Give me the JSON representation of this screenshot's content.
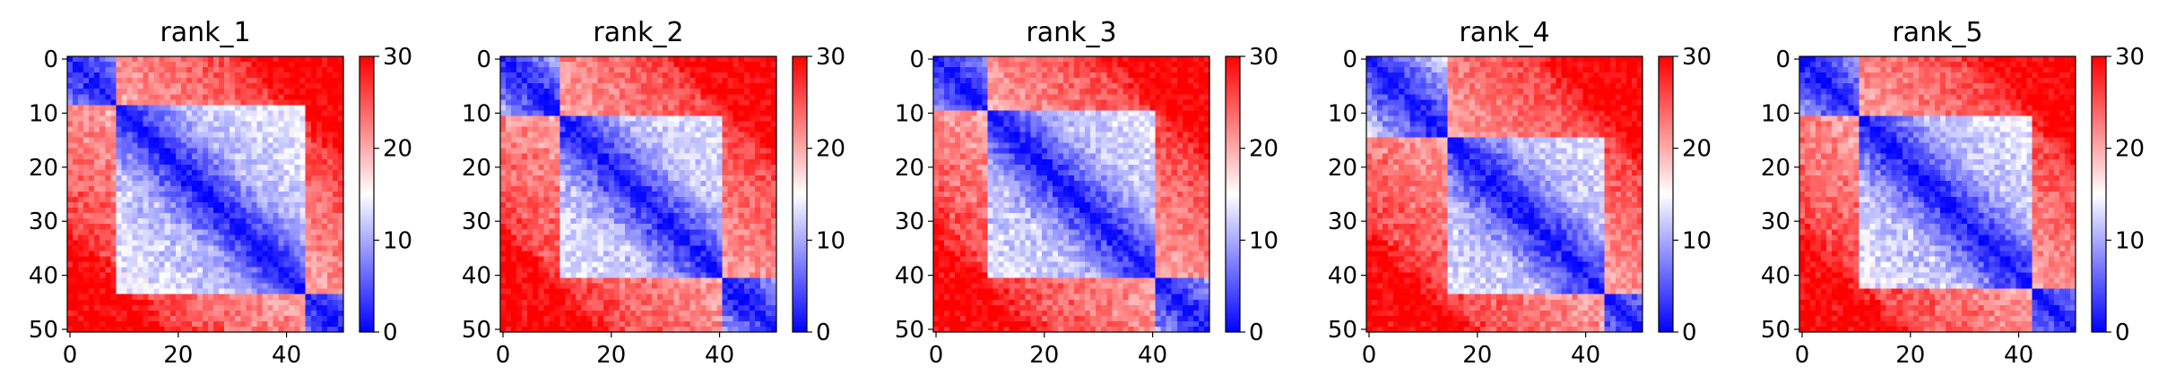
{
  "chart_data": [
    {
      "type": "heatmap",
      "title": "rank_1",
      "size": 51,
      "colormap": "bwr",
      "vmin": 0,
      "vmax": 30,
      "xlim": [
        0,
        50
      ],
      "ylim": [
        50,
        0
      ],
      "xticks": [
        "0",
        "20",
        "40"
      ],
      "yticks": [
        "0",
        "10",
        "20",
        "30",
        "40",
        "50"
      ],
      "colorbar_ticks": [
        "0",
        "10",
        "20",
        "30"
      ],
      "domains": [
        [
          0,
          8
        ],
        [
          9,
          43
        ],
        [
          44,
          50
        ]
      ]
    },
    {
      "type": "heatmap",
      "title": "rank_2",
      "size": 51,
      "colormap": "bwr",
      "vmin": 0,
      "vmax": 30,
      "xlim": [
        0,
        50
      ],
      "ylim": [
        50,
        0
      ],
      "xticks": [
        "0",
        "20",
        "40"
      ],
      "yticks": [
        "0",
        "10",
        "20",
        "30",
        "40",
        "50"
      ],
      "colorbar_ticks": [
        "0",
        "10",
        "20",
        "30"
      ],
      "domains": [
        [
          0,
          10
        ],
        [
          11,
          40
        ],
        [
          41,
          50
        ]
      ]
    },
    {
      "type": "heatmap",
      "title": "rank_3",
      "size": 51,
      "colormap": "bwr",
      "vmin": 0,
      "vmax": 30,
      "xlim": [
        0,
        50
      ],
      "ylim": [
        50,
        0
      ],
      "xticks": [
        "0",
        "20",
        "40"
      ],
      "yticks": [
        "0",
        "10",
        "20",
        "30",
        "40",
        "50"
      ],
      "colorbar_ticks": [
        "0",
        "10",
        "20",
        "30"
      ],
      "domains": [
        [
          0,
          9
        ],
        [
          10,
          40
        ],
        [
          41,
          50
        ]
      ]
    },
    {
      "type": "heatmap",
      "title": "rank_4",
      "size": 51,
      "colormap": "bwr",
      "vmin": 0,
      "vmax": 30,
      "xlim": [
        0,
        50
      ],
      "ylim": [
        50,
        0
      ],
      "xticks": [
        "0",
        "20",
        "40"
      ],
      "yticks": [
        "0",
        "10",
        "20",
        "30",
        "40",
        "50"
      ],
      "colorbar_ticks": [
        "0",
        "10",
        "20",
        "30"
      ],
      "domains": [
        [
          0,
          14
        ],
        [
          15,
          43
        ],
        [
          44,
          50
        ]
      ]
    },
    {
      "type": "heatmap",
      "title": "rank_5",
      "size": 51,
      "colormap": "bwr",
      "vmin": 0,
      "vmax": 30,
      "xlim": [
        0,
        50
      ],
      "ylim": [
        50,
        0
      ],
      "xticks": [
        "0",
        "20",
        "40"
      ],
      "yticks": [
        "0",
        "10",
        "20",
        "30",
        "40",
        "50"
      ],
      "colorbar_ticks": [
        "0",
        "10",
        "20",
        "30"
      ],
      "domains": [
        [
          0,
          10
        ],
        [
          11,
          42
        ],
        [
          43,
          50
        ]
      ]
    }
  ],
  "colors": {
    "low": "#0000ff",
    "mid": "#ffffff",
    "high": "#ff0000"
  }
}
